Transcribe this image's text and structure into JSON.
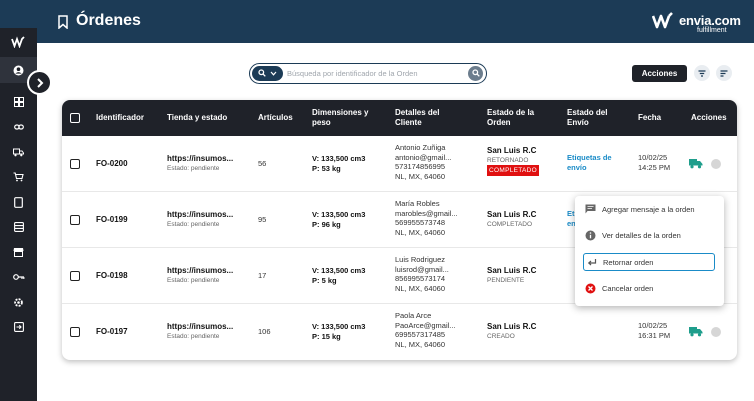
{
  "header": {
    "title": "Órdenes"
  },
  "logo": {
    "name": "envia.com",
    "sub": "fulfillment"
  },
  "search": {
    "placeholder": "Búsqueda por identificador de la Orden"
  },
  "toolbar": {
    "actions_label": "Acciones"
  },
  "table": {
    "columns": [
      "Identificador",
      "Tienda y estado",
      "Artículos",
      "Dimensiones y peso",
      "Detalles del Cliente",
      "Estado de la Orden",
      "Estado del Envío",
      "Fecha",
      "Acciones"
    ],
    "rows": [
      {
        "id": "FO-0200",
        "store": "https://insumos...",
        "store_status": "Estado: pendiente",
        "items": "56",
        "dims": "V: 133,500 cm3",
        "weight": "P: 53 kg",
        "client_name": "Antonio Zuñiga",
        "client_email": "antonio@gmail...",
        "client_phone": "573174856995",
        "client_location": "NL, MX, 64060",
        "order_location": "San Luis R.C",
        "order_status": "RETORNADO",
        "order_badge": "COMPLETADO",
        "shipping": "Etiquetas de envío",
        "date": "10/02/25",
        "time": "14:25 PM"
      },
      {
        "id": "FO-0199",
        "store": "https://insumos...",
        "store_status": "Estado: pendiente",
        "items": "95",
        "dims": "V: 133,500 cm3",
        "weight": "P: 96 kg",
        "client_name": "María Robles",
        "client_email": "marobles@gmail...",
        "client_phone": "569955573748",
        "client_location": "NL, MX, 64060",
        "order_location": "San Luis R.C",
        "order_status": "COMPLETADO",
        "shipping_partial": "Et",
        "shipping_partial2": "en"
      },
      {
        "id": "FO-0198",
        "store": "https://insumos...",
        "store_status": "Estado: pendiente",
        "items": "17",
        "dims": "V: 133,500 cm3",
        "weight": "P: 5 kg",
        "client_name": "Luis Rodriguez",
        "client_email": "luisrod@gmail...",
        "client_phone": "856995573174",
        "client_location": "NL, MX, 64060",
        "order_location": "San Luis R.C",
        "order_status": "PENDIENTE"
      },
      {
        "id": "FO-0197",
        "store": "https://insumos...",
        "store_status": "Estado: pendiente",
        "items": "106",
        "dims": "V: 133,500 cm3",
        "weight": "P: 15 kg",
        "client_name": "Paola Arce",
        "client_email": "PaoArce@gmail...",
        "client_phone": "699557317485",
        "client_location": "NL, MX, 64060",
        "order_location": "San Luis R.C",
        "order_status": "CREADO",
        "date": "10/02/25",
        "time": "16:31 PM"
      }
    ]
  },
  "menu": {
    "items": [
      "Agregar mensaje a la orden",
      "Ver detalles de la orden",
      "Retornar orden",
      "Cancelar orden"
    ]
  },
  "colors": {
    "header": "#1c3b56",
    "sidebar": "#1f2229",
    "badge": "#e01010",
    "link": "#1a8bc7",
    "truck": "#1f9e8c"
  },
  "icons": {
    "sidebar": [
      "logo-icon",
      "user-icon",
      "dashboard-icon",
      "link-icon",
      "truck-icon",
      "cart-icon",
      "book-icon",
      "database-icon",
      "store-icon",
      "key-icon",
      "settings-icon",
      "exit-icon"
    ]
  }
}
